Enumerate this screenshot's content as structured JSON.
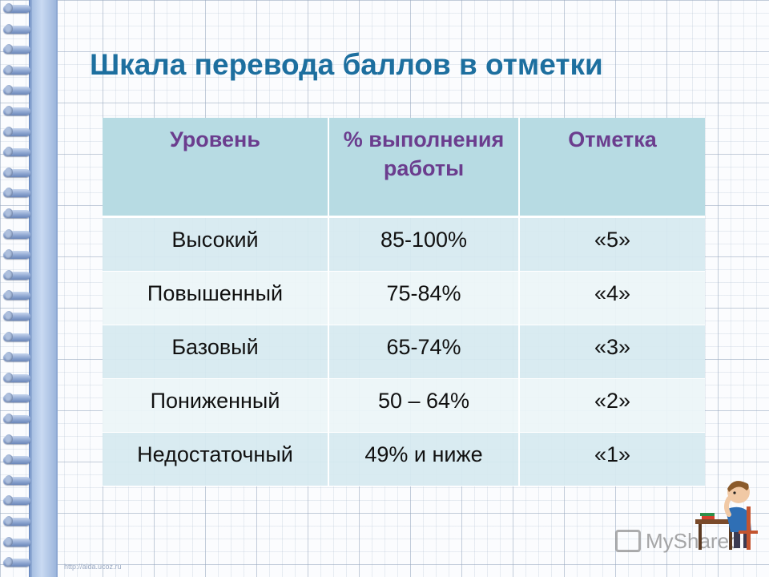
{
  "title": "Шкала перевода баллов в отметки",
  "table": {
    "headers": [
      "Уровень",
      "% выполнения работы",
      "Отметка"
    ],
    "rows": [
      [
        "Высокий",
        "85-100%",
        "«5»"
      ],
      [
        "Повышенный",
        "75-84%",
        "«4»"
      ],
      [
        "Базовый",
        "65-74%",
        "«3»"
      ],
      [
        "Пониженный",
        "50 – 64%",
        "«2»"
      ],
      [
        "Недостаточный",
        "49% и ниже",
        "«1»"
      ]
    ]
  },
  "watermark": {
    "text": "MyShared",
    "icon": "myshared-logo-icon"
  },
  "footer": {
    "url": "http://aida.ucoz.ru"
  },
  "colors": {
    "title": "#1d6f9f",
    "header_text": "#6b3d8e",
    "header_bg": "#b7dbe3",
    "row_bg_odd": "#d6eaf0",
    "row_bg_even": "#ecf5f8",
    "binding": "#a7bfe2"
  },
  "decorations": {
    "binding_icon": "notebook-spiral-icon",
    "character_icon": "student-at-desk-icon"
  }
}
